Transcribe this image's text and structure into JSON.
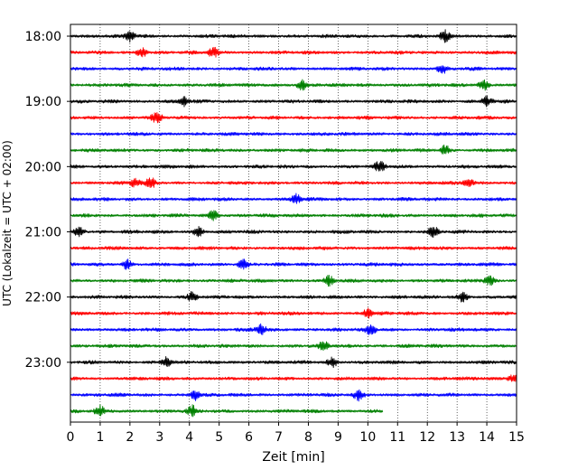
{
  "chart_data": {
    "type": "line",
    "title": "",
    "xlabel": "Zeit  [min]",
    "ylabel": "UTC (Lokalzeit = UTC + 02:00)",
    "xlim": [
      0,
      15
    ],
    "x_ticks": [
      "0",
      "1",
      "2",
      "3",
      "4",
      "5",
      "6",
      "7",
      "8",
      "9",
      "10",
      "11",
      "12",
      "13",
      "14",
      "15"
    ],
    "y_ticks": [
      "18:00",
      "19:00",
      "20:00",
      "21:00",
      "22:00",
      "23:00"
    ],
    "grid": "vertical dotted",
    "rows_per_hour": 4,
    "trace_colors": [
      "#000000",
      "#ff0000",
      "#0000ff",
      "#008000"
    ],
    "series": [
      {
        "start": "18:00",
        "color": "#000000",
        "end_min": 15,
        "spikes_min": [
          2.0,
          12.6
        ]
      },
      {
        "start": "18:15",
        "color": "#ff0000",
        "end_min": 15,
        "spikes_min": [
          2.4,
          4.8
        ]
      },
      {
        "start": "18:30",
        "color": "#0000ff",
        "end_min": 15,
        "spikes_min": [
          12.5
        ]
      },
      {
        "start": "18:45",
        "color": "#008000",
        "end_min": 15,
        "spikes_min": [
          7.8,
          13.9
        ]
      },
      {
        "start": "19:00",
        "color": "#000000",
        "end_min": 15,
        "spikes_min": [
          3.8,
          14.0
        ]
      },
      {
        "start": "19:15",
        "color": "#ff0000",
        "end_min": 15,
        "spikes_min": [
          2.9
        ]
      },
      {
        "start": "19:30",
        "color": "#0000ff",
        "end_min": 15,
        "spikes_min": []
      },
      {
        "start": "19:45",
        "color": "#008000",
        "end_min": 15,
        "spikes_min": [
          12.6
        ]
      },
      {
        "start": "20:00",
        "color": "#000000",
        "end_min": 15,
        "spikes_min": [
          10.4
        ]
      },
      {
        "start": "20:15",
        "color": "#ff0000",
        "end_min": 15,
        "spikes_min": [
          2.2,
          2.7,
          13.4
        ]
      },
      {
        "start": "20:30",
        "color": "#0000ff",
        "end_min": 15,
        "spikes_min": [
          7.6
        ]
      },
      {
        "start": "20:45",
        "color": "#008000",
        "end_min": 15,
        "spikes_min": [
          4.8
        ]
      },
      {
        "start": "21:00",
        "color": "#000000",
        "end_min": 15,
        "spikes_min": [
          0.3,
          4.3,
          12.2
        ]
      },
      {
        "start": "21:15",
        "color": "#ff0000",
        "end_min": 15,
        "spikes_min": []
      },
      {
        "start": "21:30",
        "color": "#0000ff",
        "end_min": 15,
        "spikes_min": [
          1.9,
          5.8
        ]
      },
      {
        "start": "21:45",
        "color": "#008000",
        "end_min": 15,
        "spikes_min": [
          8.7,
          14.1
        ]
      },
      {
        "start": "22:00",
        "color": "#000000",
        "end_min": 15,
        "spikes_min": [
          4.1,
          13.2
        ]
      },
      {
        "start": "22:15",
        "color": "#ff0000",
        "end_min": 15,
        "spikes_min": [
          10.0
        ]
      },
      {
        "start": "22:30",
        "color": "#0000ff",
        "end_min": 15,
        "spikes_min": [
          6.4,
          10.1
        ]
      },
      {
        "start": "22:45",
        "color": "#008000",
        "end_min": 15,
        "spikes_min": [
          8.5
        ]
      },
      {
        "start": "23:00",
        "color": "#000000",
        "end_min": 15,
        "spikes_min": [
          3.2,
          8.8
        ]
      },
      {
        "start": "23:15",
        "color": "#ff0000",
        "end_min": 15,
        "spikes_min": [
          14.9
        ]
      },
      {
        "start": "23:30",
        "color": "#0000ff",
        "end_min": 15,
        "spikes_min": [
          4.2,
          9.7
        ]
      },
      {
        "start": "23:45",
        "color": "#008000",
        "end_min": 10.5,
        "spikes_min": [
          1.0,
          4.1
        ]
      }
    ]
  }
}
